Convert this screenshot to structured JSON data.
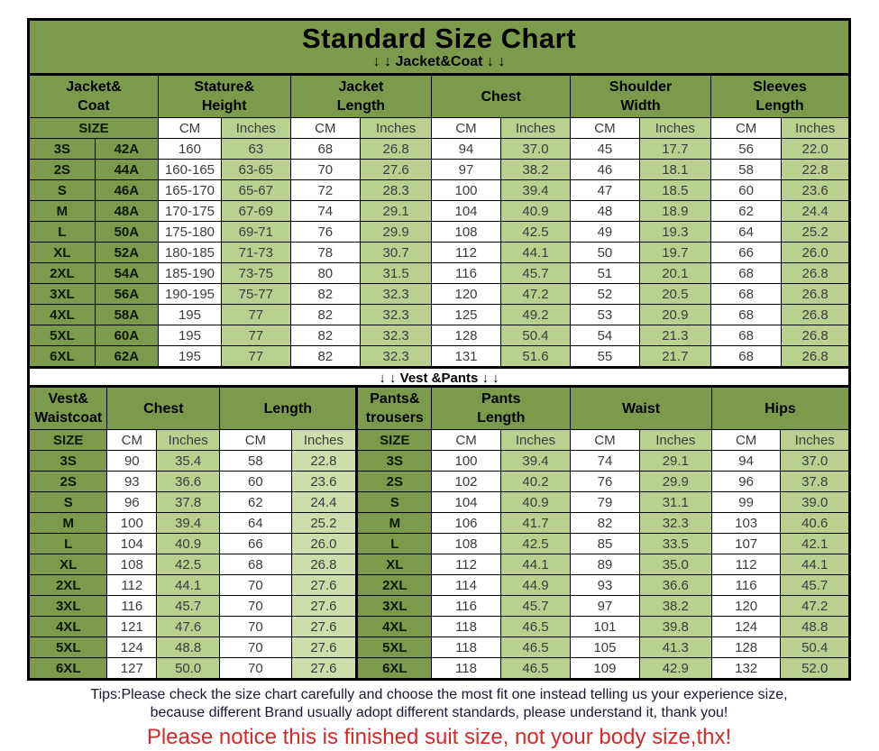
{
  "page_title": "Standard Size Chart",
  "jacket_banner": "↓ ↓  Jacket&Coat ↓ ↓",
  "vest_banner": "↓ ↓  Vest &Pants ↓ ↓",
  "size_label": "SIZE",
  "unit_cm": "CM",
  "unit_inches": "Inches",
  "table1_groups": [
    {
      "label": "Jacket&\nCoat"
    },
    {
      "label": "Stature&\nHeight"
    },
    {
      "label": "Jacket\nLength"
    },
    {
      "label": "Chest"
    },
    {
      "label": "Shoulder\nWidth"
    },
    {
      "label": "Sleeves\nLength"
    }
  ],
  "table2_groups": [
    {
      "label": "Vest&\nWaistcoat"
    },
    {
      "label": "Chest"
    },
    {
      "label": "Length"
    },
    {
      "label": "Pants&\ntrousers"
    },
    {
      "label": "Pants\nLength"
    },
    {
      "label": "Waist"
    },
    {
      "label": "Hips"
    }
  ],
  "footer": {
    "tips_line1": "Tips:Please check the size chart carefully and choose the most fit one instead telling us your experience size,",
    "tips_line2": "because different Brand usually adopt different standards, please understand it, thank you!",
    "notice": "Please notice this is finished suit size, not your body size,thx!"
  },
  "colors": {
    "header_green": "#7d9a4c",
    "cell_green": "#b9d08f",
    "cell_green_light": "#cdddab",
    "cell_white": "#ffffff",
    "notice_red": "#d42a2a",
    "tips_ink": "#191932",
    "border_black": "#000000"
  },
  "chart_data": [
    {
      "type": "table",
      "title": "Jacket&Coat",
      "columns": [
        "SIZE",
        "SIZE code",
        "Stature&Height CM",
        "Stature&Height Inches",
        "Jacket Length CM",
        "Jacket Length Inches",
        "Chest CM",
        "Chest Inches",
        "Shoulder Width CM",
        "Shoulder Width Inches",
        "Sleeves Length CM",
        "Sleeves Length Inches"
      ],
      "rows": [
        [
          "3S",
          "42A",
          "160",
          "63",
          "68",
          "26.8",
          "94",
          "37.0",
          "45",
          "17.7",
          "56",
          "22.0"
        ],
        [
          "2S",
          "44A",
          "160-165",
          "63-65",
          "70",
          "27.6",
          "97",
          "38.2",
          "46",
          "18.1",
          "58",
          "22.8"
        ],
        [
          "S",
          "46A",
          "165-170",
          "65-67",
          "72",
          "28.3",
          "100",
          "39.4",
          "47",
          "18.5",
          "60",
          "23.6"
        ],
        [
          "M",
          "48A",
          "170-175",
          "67-69",
          "74",
          "29.1",
          "104",
          "40.9",
          "48",
          "18.9",
          "62",
          "24.4"
        ],
        [
          "L",
          "50A",
          "175-180",
          "69-71",
          "76",
          "29.9",
          "108",
          "42.5",
          "49",
          "19.3",
          "64",
          "25.2"
        ],
        [
          "XL",
          "52A",
          "180-185",
          "71-73",
          "78",
          "30.7",
          "112",
          "44.1",
          "50",
          "19.7",
          "66",
          "26.0"
        ],
        [
          "2XL",
          "54A",
          "185-190",
          "73-75",
          "80",
          "31.5",
          "116",
          "45.7",
          "51",
          "20.1",
          "68",
          "26.8"
        ],
        [
          "3XL",
          "56A",
          "190-195",
          "75-77",
          "82",
          "32.3",
          "120",
          "47.2",
          "52",
          "20.5",
          "68",
          "26.8"
        ],
        [
          "4XL",
          "58A",
          "195",
          "77",
          "82",
          "32.3",
          "125",
          "49.2",
          "53",
          "20.9",
          "68",
          "26.8"
        ],
        [
          "5XL",
          "60A",
          "195",
          "77",
          "82",
          "32.3",
          "128",
          "50.4",
          "54",
          "21.3",
          "68",
          "26.8"
        ],
        [
          "6XL",
          "62A",
          "195",
          "77",
          "82",
          "32.3",
          "131",
          "51.6",
          "55",
          "21.7",
          "68",
          "26.8"
        ]
      ]
    },
    {
      "type": "table",
      "title": "Vest &Pants",
      "columns": [
        "Vest SIZE",
        "Vest Chest CM",
        "Vest Chest Inches",
        "Vest Length CM",
        "Vest Length Inches",
        "Pants SIZE",
        "Pants Length CM",
        "Pants Length Inches",
        "Waist CM",
        "Waist Inches",
        "Hips CM",
        "Hips Inches"
      ],
      "rows": [
        [
          "3S",
          "90",
          "35.4",
          "58",
          "22.8",
          "3S",
          "100",
          "39.4",
          "74",
          "29.1",
          "94",
          "37.0"
        ],
        [
          "2S",
          "93",
          "36.6",
          "60",
          "23.6",
          "2S",
          "102",
          "40.2",
          "76",
          "29.9",
          "96",
          "37.8"
        ],
        [
          "S",
          "96",
          "37.8",
          "62",
          "24.4",
          "S",
          "104",
          "40.9",
          "79",
          "31.1",
          "99",
          "39.0"
        ],
        [
          "M",
          "100",
          "39.4",
          "64",
          "25.2",
          "M",
          "106",
          "41.7",
          "82",
          "32.3",
          "103",
          "40.6"
        ],
        [
          "L",
          "104",
          "40.9",
          "66",
          "26.0",
          "L",
          "108",
          "42.5",
          "85",
          "33.5",
          "107",
          "42.1"
        ],
        [
          "XL",
          "108",
          "42.5",
          "68",
          "26.8",
          "XL",
          "112",
          "44.1",
          "89",
          "35.0",
          "112",
          "44.1"
        ],
        [
          "2XL",
          "112",
          "44.1",
          "70",
          "27.6",
          "2XL",
          "114",
          "44.9",
          "93",
          "36.6",
          "116",
          "45.7"
        ],
        [
          "3XL",
          "116",
          "45.7",
          "70",
          "27.6",
          "3XL",
          "116",
          "45.7",
          "97",
          "38.2",
          "120",
          "47.2"
        ],
        [
          "4XL",
          "121",
          "47.6",
          "70",
          "27.6",
          "4XL",
          "118",
          "46.5",
          "101",
          "39.8",
          "124",
          "48.8"
        ],
        [
          "5XL",
          "124",
          "48.8",
          "70",
          "27.6",
          "5XL",
          "118",
          "46.5",
          "105",
          "41.3",
          "128",
          "50.4"
        ],
        [
          "6XL",
          "127",
          "50.0",
          "70",
          "27.6",
          "6XL",
          "118",
          "46.5",
          "109",
          "42.9",
          "132",
          "52.0"
        ]
      ]
    }
  ]
}
